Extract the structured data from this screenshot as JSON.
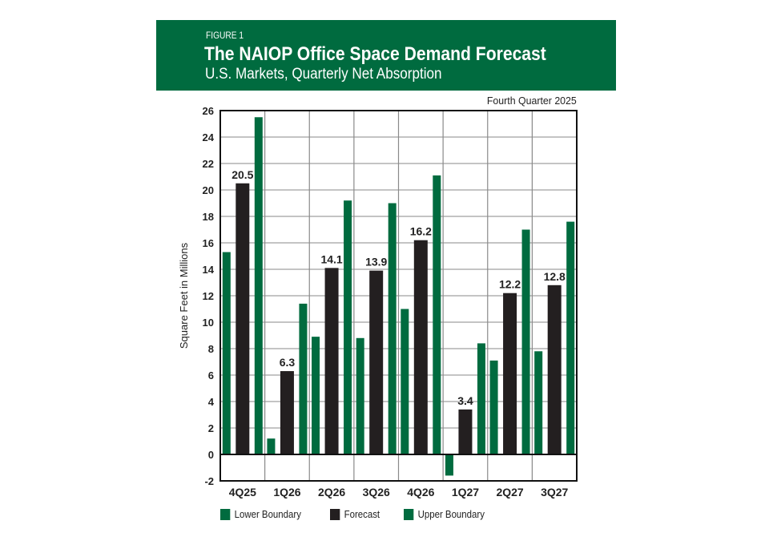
{
  "header": {
    "figure_label": "FIGURE 1",
    "title": "The NAIOP Office Space Demand Forecast",
    "subtitle": "U.S. Markets, Quarterly Net Absorption",
    "background": "#006b3f"
  },
  "note": "Fourth Quarter 2025",
  "chart_data": {
    "type": "bar",
    "title": "The NAIOP Office Space Demand Forecast",
    "subtitle": "U.S. Markets, Quarterly Net Absorption",
    "xlabel": "",
    "ylabel": "Square Feet in Millions",
    "ylim": [
      -2,
      26
    ],
    "yticks": [
      -2,
      0,
      2,
      4,
      6,
      8,
      10,
      12,
      14,
      16,
      18,
      20,
      22,
      24,
      26
    ],
    "grid": true,
    "legend_position": "bottom-left",
    "categories": [
      "4Q25",
      "1Q26",
      "2Q26",
      "3Q26",
      "4Q26",
      "1Q27",
      "2Q27",
      "3Q27"
    ],
    "series": [
      {
        "name": "Lower Boundary",
        "color": "#006b3f",
        "values": [
          15.3,
          1.2,
          8.9,
          8.8,
          11.0,
          -1.6,
          7.1,
          7.8
        ]
      },
      {
        "name": "Forecast",
        "color": "#231f20",
        "values": [
          20.5,
          6.3,
          14.1,
          13.9,
          16.2,
          3.4,
          12.2,
          12.8
        ],
        "labels": [
          "20.5",
          "6.3",
          "14.1",
          "13.9",
          "16.2",
          "3.4",
          "12.2",
          "12.8"
        ]
      },
      {
        "name": "Upper Boundary",
        "color": "#006b3f",
        "values": [
          25.5,
          11.4,
          19.2,
          19.0,
          21.1,
          8.4,
          17.0,
          17.6
        ]
      }
    ]
  }
}
